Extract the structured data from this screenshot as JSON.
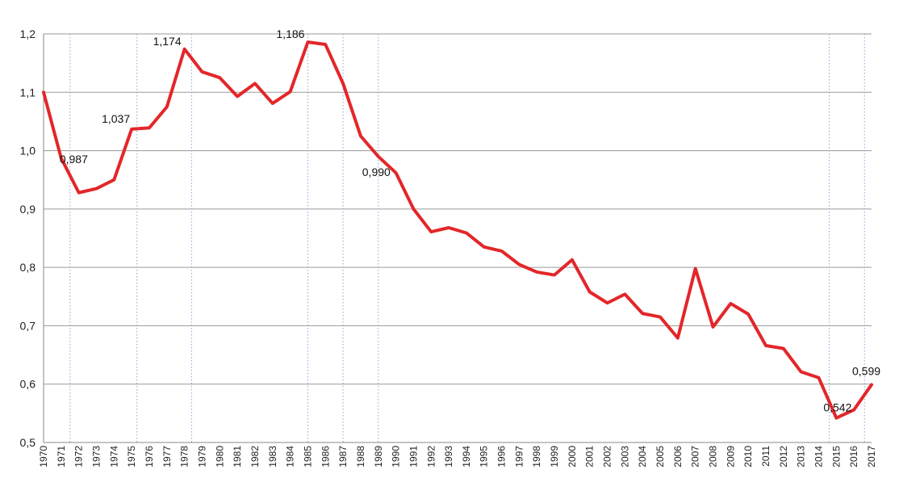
{
  "chart_data": {
    "type": "line",
    "title": "",
    "xlabel": "",
    "ylabel": "",
    "ylim": [
      0.5,
      1.2
    ],
    "yticks": [
      0.5,
      0.6,
      0.7,
      0.8,
      0.9,
      1.0,
      1.1,
      1.2
    ],
    "ytick_labels": [
      "0,5",
      "0,6",
      "0,7",
      "0,8",
      "0,9",
      "1,0",
      "1,1",
      "1,2"
    ],
    "grid": "horizontal",
    "colors": {
      "series": "#e3262a",
      "grid": "#9a9a9a",
      "reference_lines": "#8aa6d6"
    },
    "x": [
      "1970",
      "1971",
      "1972",
      "1973",
      "1974",
      "1975",
      "1976",
      "1977",
      "1978",
      "1979",
      "1980",
      "1981",
      "1982",
      "1983",
      "1984",
      "1985",
      "1986",
      "1987",
      "1988",
      "1989",
      "1990",
      "1991",
      "1992",
      "1993",
      "1994",
      "1995",
      "1996",
      "1997",
      "1998",
      "1999",
      "2000",
      "2001",
      "2002",
      "2003",
      "2004",
      "2005",
      "2006",
      "2007",
      "2008",
      "2009",
      "2010",
      "2011",
      "2012",
      "2013",
      "2014",
      "2015",
      "2016",
      "2017"
    ],
    "series": [
      {
        "values": [
          1.1,
          0.987,
          0.928,
          0.935,
          0.95,
          1.037,
          1.039,
          1.075,
          1.174,
          1.135,
          1.125,
          1.093,
          1.115,
          1.081,
          1.101,
          1.186,
          1.182,
          1.115,
          1.025,
          0.99,
          0.962,
          0.9,
          0.861,
          0.868,
          0.859,
          0.835,
          0.828,
          0.805,
          0.792,
          0.787,
          0.813,
          0.758,
          0.739,
          0.754,
          0.721,
          0.715,
          0.679,
          0.798,
          0.698,
          0.738,
          0.72,
          0.666,
          0.661,
          0.621,
          0.611,
          0.542,
          0.556,
          0.599
        ]
      }
    ],
    "reference_lines_x": [
      1971.5,
      1975.3,
      1978.4,
      1985.0,
      1987.0,
      1989.0,
      2014.6,
      2016.6
    ],
    "annotations": [
      {
        "x": "1971",
        "y": 0.987,
        "text": "0,987"
      },
      {
        "x": "1975",
        "y": 1.037,
        "text": "1,037"
      },
      {
        "x": "1978",
        "y": 1.174,
        "text": "1,174"
      },
      {
        "x": "1985",
        "y": 1.186,
        "text": "1,186"
      },
      {
        "x": "1989",
        "y": 0.99,
        "text": "0,990"
      },
      {
        "x": "2015",
        "y": 0.542,
        "text": "0,542"
      },
      {
        "x": "2017",
        "y": 0.599,
        "text": "0,599"
      }
    ]
  }
}
